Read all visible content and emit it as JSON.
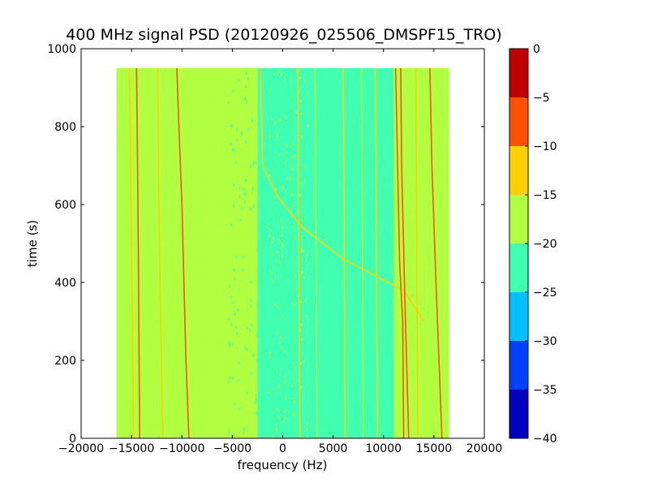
{
  "chart_data": {
    "type": "heatmap",
    "title": "400 MHz signal PSD (20120926_025506_DMSPF15_TRO)",
    "xlabel": "frequency (Hz)",
    "ylabel": "time (s)",
    "xlim": [
      -20000,
      20000
    ],
    "ylim": [
      0,
      1000
    ],
    "xticks": [
      -20000,
      -15000,
      -10000,
      -5000,
      0,
      5000,
      10000,
      15000,
      20000
    ],
    "xtick_labels": [
      "−20000",
      "−15000",
      "−10000",
      "−5000",
      "0",
      "5000",
      "10000",
      "15000",
      "20000"
    ],
    "yticks": [
      0,
      200,
      400,
      600,
      800,
      1000
    ],
    "ytick_labels": [
      "0",
      "200",
      "400",
      "600",
      "800",
      "1000"
    ],
    "data_extent": {
      "freq": [
        -16500,
        16500
      ],
      "time": [
        0,
        950
      ]
    },
    "colorbar": {
      "levels": [
        -40,
        -35,
        -30,
        -25,
        -20,
        -15,
        -10,
        -5,
        0
      ],
      "labels": [
        "−40",
        "−35",
        "−30",
        "−25",
        "−20",
        "−15",
        "−10",
        "−5",
        "0"
      ],
      "colors": [
        "#0000bf",
        "#0040ff",
        "#00c0ff",
        "#40ffb0",
        "#b0ff40",
        "#ffd000",
        "#ff5000",
        "#c00000"
      ]
    },
    "background_regions": [
      {
        "freq": [
          -16500,
          -2500
        ],
        "level": "#b0ff40"
      },
      {
        "freq": [
          -2500,
          2500
        ],
        "level": "#40ffb0",
        "note_level": "transition"
      },
      {
        "freq": [
          2500,
          11000
        ],
        "level": "#40ffb0"
      },
      {
        "freq": [
          11000,
          16500
        ],
        "level": "#b0ff40"
      }
    ],
    "tracks": [
      {
        "color": "#ff5000",
        "points": [
          [
            -10500,
            950
          ],
          [
            -10300,
            800
          ],
          [
            -10000,
            600
          ],
          [
            -9800,
            400
          ],
          [
            -9600,
            200
          ],
          [
            -9300,
            0
          ]
        ]
      },
      {
        "color": "#ff5000",
        "points": [
          [
            -14500,
            950
          ],
          [
            -14400,
            700
          ],
          [
            -14300,
            400
          ],
          [
            -14200,
            0
          ]
        ]
      },
      {
        "color": "#ffd000",
        "points": [
          [
            -12400,
            950
          ],
          [
            -12300,
            600
          ],
          [
            -12100,
            300
          ],
          [
            -11900,
            0
          ]
        ]
      },
      {
        "color": "#ffd000",
        "points": [
          [
            -15200,
            950
          ],
          [
            -15000,
            500
          ],
          [
            -14800,
            0
          ]
        ]
      },
      {
        "color": "#ffd000",
        "points": [
          [
            -2000,
            700
          ],
          [
            -500,
            620
          ],
          [
            2000,
            540
          ],
          [
            6000,
            460
          ],
          [
            9000,
            420
          ],
          [
            12000,
            380
          ],
          [
            14000,
            300
          ]
        ]
      },
      {
        "color": "#ffd000",
        "points": [
          [
            -2200,
            950
          ],
          [
            -2000,
            700
          ]
        ]
      },
      {
        "color": "#ff5000",
        "points": [
          [
            11200,
            950
          ],
          [
            11400,
            700
          ],
          [
            11600,
            450
          ],
          [
            11900,
            300
          ],
          [
            12000,
            0
          ]
        ]
      },
      {
        "color": "#ff5000",
        "points": [
          [
            11700,
            950
          ],
          [
            11800,
            700
          ],
          [
            12100,
            380
          ],
          [
            12500,
            0
          ]
        ]
      },
      {
        "color": "#ff5000",
        "points": [
          [
            14600,
            950
          ],
          [
            14800,
            700
          ],
          [
            15200,
            400
          ],
          [
            15800,
            0
          ]
        ]
      },
      {
        "color": "#ffd000",
        "points": [
          [
            13200,
            950
          ],
          [
            13300,
            500
          ],
          [
            13400,
            0
          ]
        ]
      },
      {
        "color": "#ffd000",
        "points": [
          [
            1500,
            950
          ],
          [
            1600,
            500
          ],
          [
            1700,
            0
          ]
        ]
      },
      {
        "color": "#ffd000",
        "points": [
          [
            6000,
            950
          ],
          [
            6100,
            500
          ],
          [
            6200,
            0
          ]
        ]
      },
      {
        "color": "#ffd000",
        "points": [
          [
            9200,
            950
          ],
          [
            9300,
            500
          ],
          [
            9400,
            0
          ]
        ]
      },
      {
        "color": "#b0ff40",
        "points": [
          [
            3200,
            950
          ],
          [
            3300,
            500
          ],
          [
            3400,
            0
          ]
        ]
      },
      {
        "color": "#b0ff40",
        "points": [
          [
            7800,
            950
          ],
          [
            7900,
            500
          ],
          [
            8000,
            0
          ]
        ]
      },
      {
        "color": "#b0ff40",
        "points": [
          [
            -4500,
            950
          ],
          [
            -4300,
            500
          ],
          [
            -4100,
            0
          ]
        ]
      }
    ]
  }
}
